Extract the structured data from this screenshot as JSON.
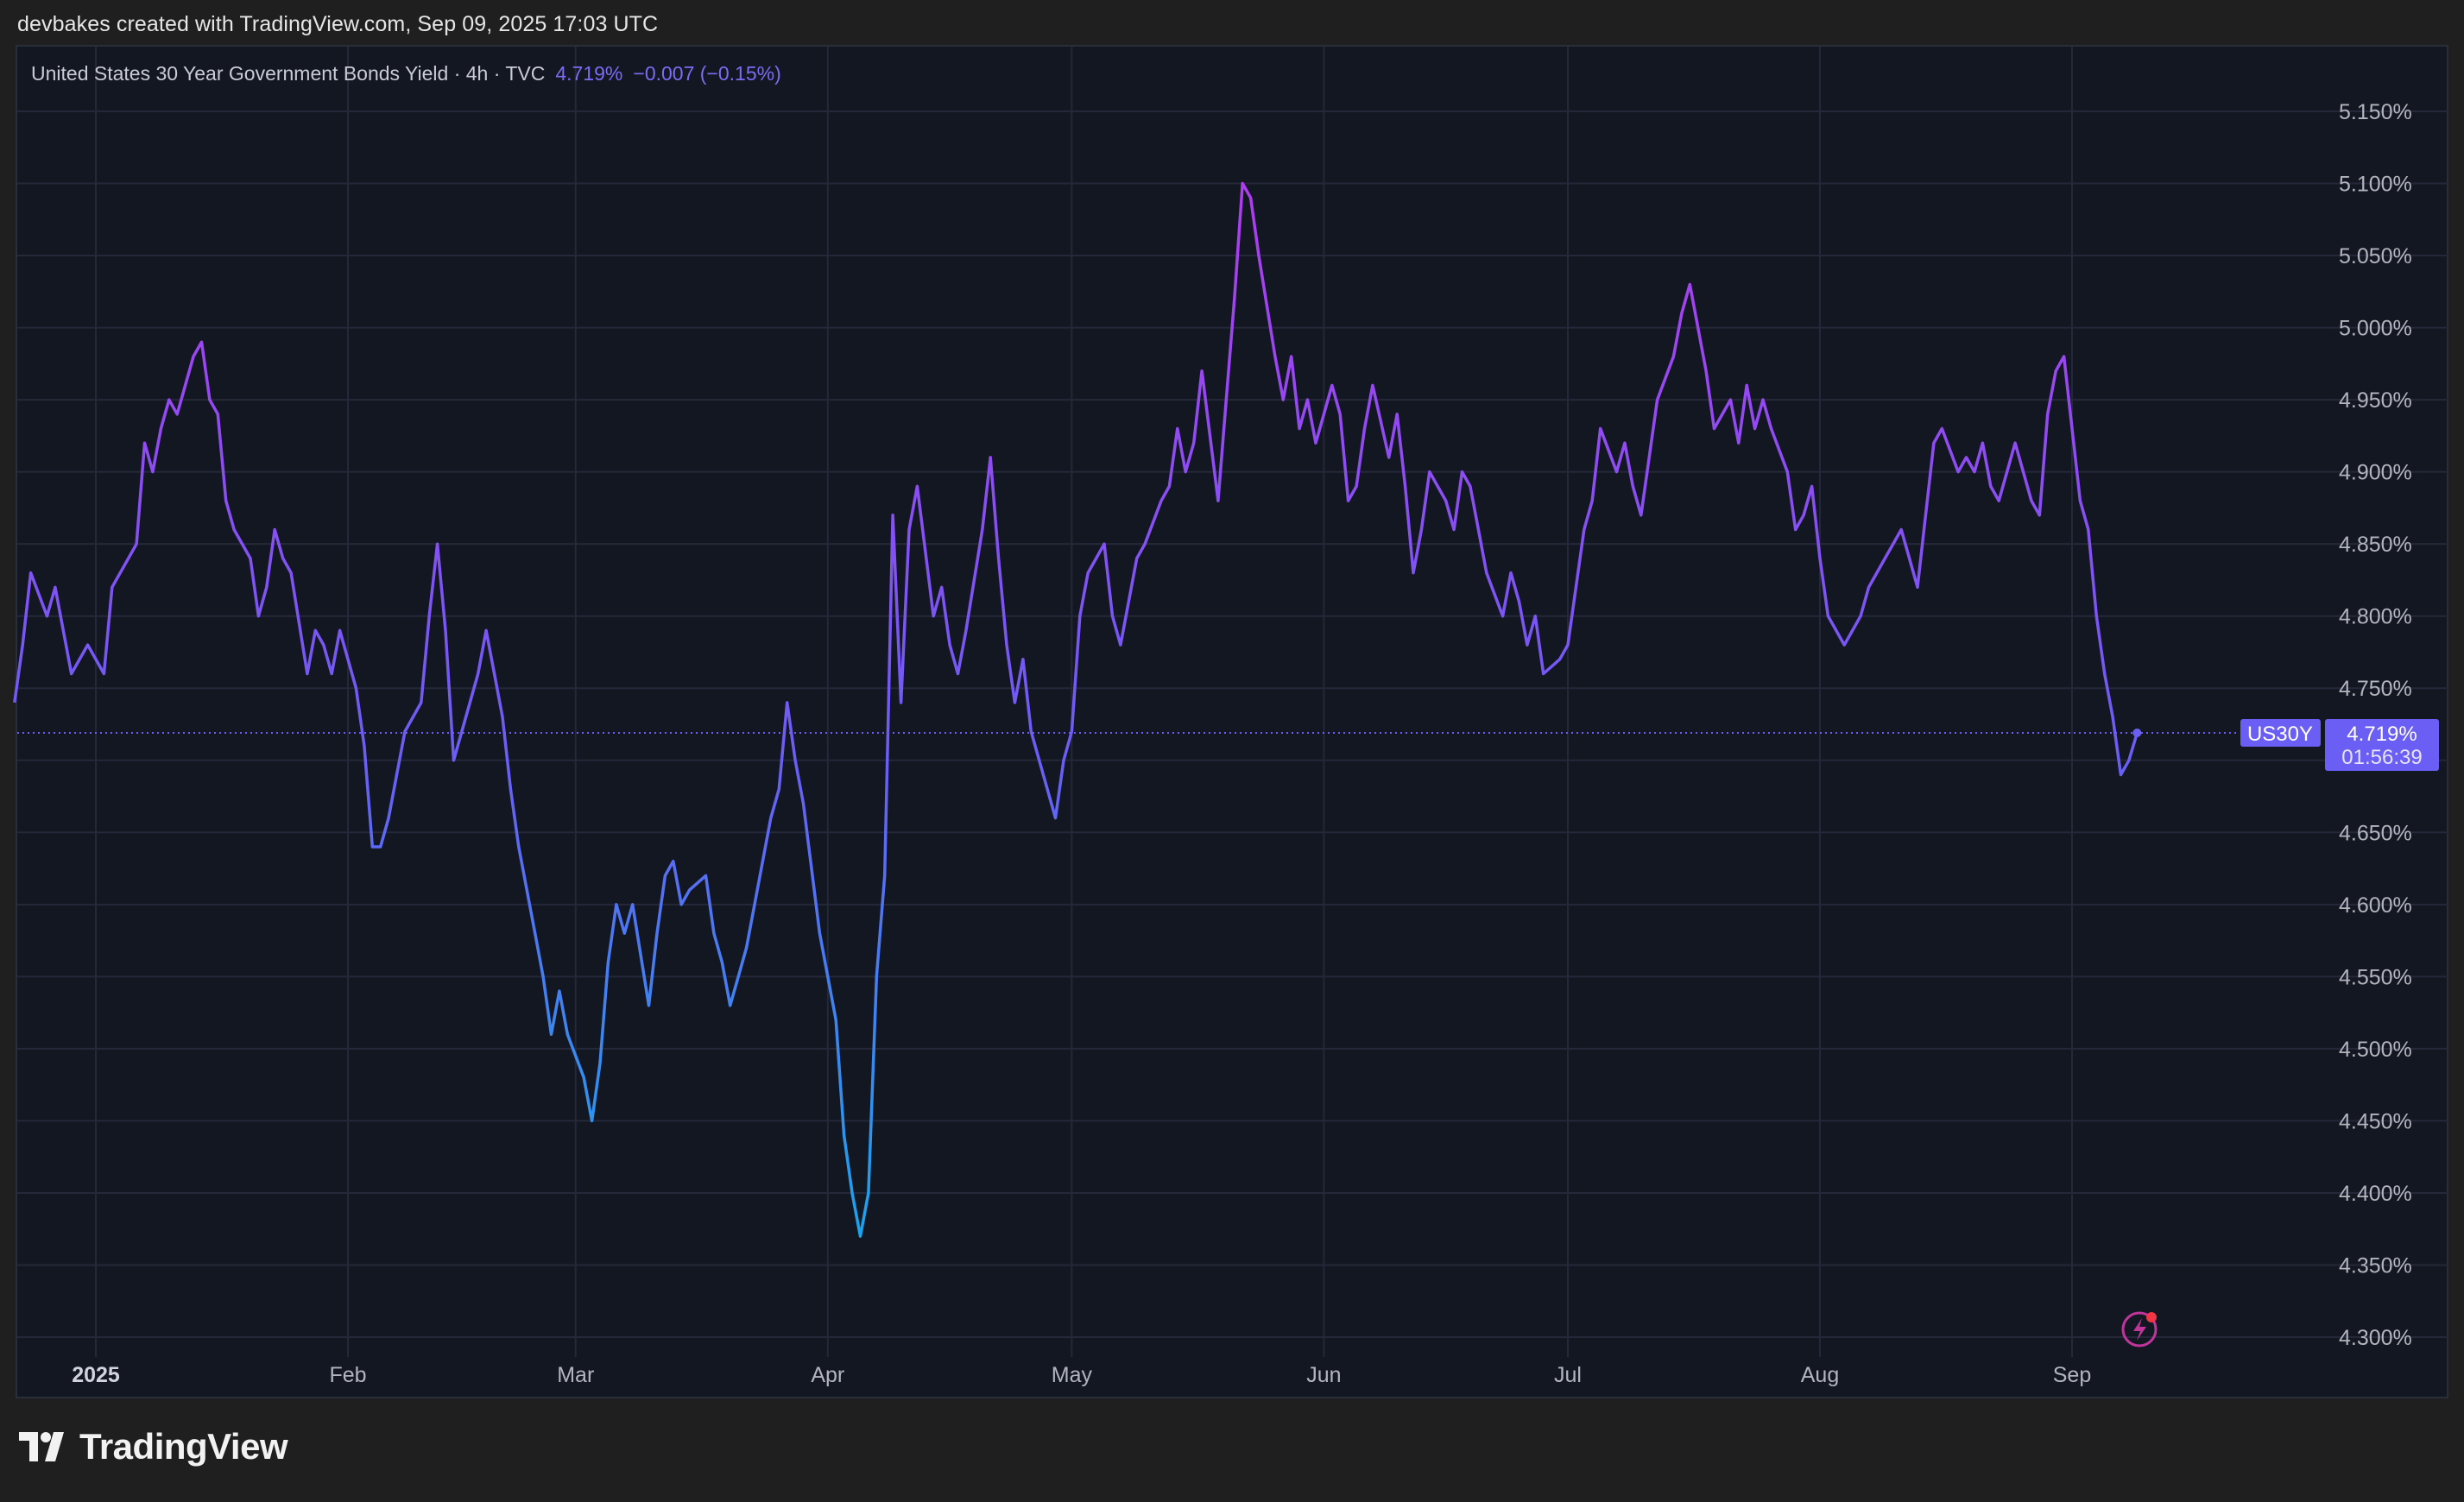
{
  "header": {
    "attribution": "devbakes created with TradingView.com, Sep 09, 2025 17:03 UTC"
  },
  "legend": {
    "title": "United States 30 Year Government Bonds Yield · 4h · TVC",
    "value": "4.719%",
    "change": "−0.007 (−0.15%)"
  },
  "footer": {
    "brand": "TradingView"
  },
  "price_tag": {
    "symbol": "US30Y",
    "price": "4.719%",
    "countdown": "01:56:39"
  },
  "colors": {
    "background": "#131722",
    "line_high": "#b03cf0",
    "line_mid": "#6a5ef5",
    "line_low": "#1aa4ee",
    "price_tag": "#6a5ef5"
  },
  "icons": [
    "tradingview-logo-icon",
    "lightning-alert-icon"
  ],
  "chart_data": {
    "type": "line",
    "ylim": [
      4.28,
      5.18
    ],
    "y_ticks": [
      4.3,
      4.35,
      4.4,
      4.45,
      4.5,
      4.55,
      4.6,
      4.65,
      4.7,
      4.75,
      4.8,
      4.85,
      4.9,
      4.95,
      5.0,
      5.05,
      5.1,
      5.15
    ],
    "y_tick_labels": [
      "4.300%",
      "4.350%",
      "4.400%",
      "4.450%",
      "4.500%",
      "4.550%",
      "4.600%",
      "4.650%",
      "4.700%",
      "4.750%",
      "4.800%",
      "4.850%",
      "4.900%",
      "4.950%",
      "5.000%",
      "5.050%",
      "5.100%",
      "5.150%"
    ],
    "x_tick_labels": [
      "2025",
      "Feb",
      "Mar",
      "Apr",
      "May",
      "Jun",
      "Jul",
      "Aug",
      "Sep"
    ],
    "x_tick_dates": [
      "2025-01-01",
      "2025-02-01",
      "2025-03-01",
      "2025-04-01",
      "2025-05-01",
      "2025-06-01",
      "2025-07-01",
      "2025-08-01",
      "2025-09-01"
    ],
    "xlim": [
      "2024-12-22",
      "2025-10-08"
    ],
    "current_value": 4.719,
    "grid": true,
    "series": [
      {
        "points": [
          [
            "2024-12-22",
            4.74
          ],
          [
            "2024-12-23",
            4.78
          ],
          [
            "2024-12-24",
            4.83
          ],
          [
            "2024-12-26",
            4.8
          ],
          [
            "2024-12-27",
            4.82
          ],
          [
            "2024-12-29",
            4.76
          ],
          [
            "2024-12-31",
            4.78
          ],
          [
            "2025-01-02",
            4.76
          ],
          [
            "2025-01-03",
            4.82
          ],
          [
            "2025-01-06",
            4.85
          ],
          [
            "2025-01-07",
            4.92
          ],
          [
            "2025-01-08",
            4.9
          ],
          [
            "2025-01-09",
            4.93
          ],
          [
            "2025-01-10",
            4.95
          ],
          [
            "2025-01-11",
            4.94
          ],
          [
            "2025-01-13",
            4.98
          ],
          [
            "2025-01-14",
            4.99
          ],
          [
            "2025-01-15",
            4.95
          ],
          [
            "2025-01-16",
            4.94
          ],
          [
            "2025-01-17",
            4.88
          ],
          [
            "2025-01-18",
            4.86
          ],
          [
            "2025-01-20",
            4.84
          ],
          [
            "2025-01-21",
            4.8
          ],
          [
            "2025-01-22",
            4.82
          ],
          [
            "2025-01-23",
            4.86
          ],
          [
            "2025-01-24",
            4.84
          ],
          [
            "2025-01-25",
            4.83
          ],
          [
            "2025-01-27",
            4.76
          ],
          [
            "2025-01-28",
            4.79
          ],
          [
            "2025-01-29",
            4.78
          ],
          [
            "2025-01-30",
            4.76
          ],
          [
            "2025-01-31",
            4.79
          ],
          [
            "2025-02-02",
            4.75
          ],
          [
            "2025-02-03",
            4.71
          ],
          [
            "2025-02-04",
            4.64
          ],
          [
            "2025-02-05",
            4.64
          ],
          [
            "2025-02-06",
            4.66
          ],
          [
            "2025-02-07",
            4.69
          ],
          [
            "2025-02-08",
            4.72
          ],
          [
            "2025-02-10",
            4.74
          ],
          [
            "2025-02-11",
            4.8
          ],
          [
            "2025-02-12",
            4.85
          ],
          [
            "2025-02-13",
            4.79
          ],
          [
            "2025-02-14",
            4.7
          ],
          [
            "2025-02-15",
            4.72
          ],
          [
            "2025-02-17",
            4.76
          ],
          [
            "2025-02-18",
            4.79
          ],
          [
            "2025-02-19",
            4.76
          ],
          [
            "2025-02-20",
            4.73
          ],
          [
            "2025-02-21",
            4.68
          ],
          [
            "2025-02-22",
            4.64
          ],
          [
            "2025-02-24",
            4.58
          ],
          [
            "2025-02-25",
            4.55
          ],
          [
            "2025-02-26",
            4.51
          ],
          [
            "2025-02-27",
            4.54
          ],
          [
            "2025-02-28",
            4.51
          ],
          [
            "2025-03-02",
            4.48
          ],
          [
            "2025-03-03",
            4.45
          ],
          [
            "2025-03-04",
            4.49
          ],
          [
            "2025-03-05",
            4.56
          ],
          [
            "2025-03-06",
            4.6
          ],
          [
            "2025-03-07",
            4.58
          ],
          [
            "2025-03-08",
            4.6
          ],
          [
            "2025-03-10",
            4.53
          ],
          [
            "2025-03-11",
            4.58
          ],
          [
            "2025-03-12",
            4.62
          ],
          [
            "2025-03-13",
            4.63
          ],
          [
            "2025-03-14",
            4.6
          ],
          [
            "2025-03-15",
            4.61
          ],
          [
            "2025-03-17",
            4.62
          ],
          [
            "2025-03-18",
            4.58
          ],
          [
            "2025-03-19",
            4.56
          ],
          [
            "2025-03-20",
            4.53
          ],
          [
            "2025-03-21",
            4.55
          ],
          [
            "2025-03-22",
            4.57
          ],
          [
            "2025-03-24",
            4.63
          ],
          [
            "2025-03-25",
            4.66
          ],
          [
            "2025-03-26",
            4.68
          ],
          [
            "2025-03-27",
            4.74
          ],
          [
            "2025-03-28",
            4.7
          ],
          [
            "2025-03-29",
            4.67
          ],
          [
            "2025-03-31",
            4.58
          ],
          [
            "2025-04-01",
            4.55
          ],
          [
            "2025-04-02",
            4.52
          ],
          [
            "2025-04-03",
            4.44
          ],
          [
            "2025-04-04",
            4.4
          ],
          [
            "2025-04-05",
            4.37
          ],
          [
            "2025-04-06",
            4.4
          ],
          [
            "2025-04-07",
            4.55
          ],
          [
            "2025-04-08",
            4.62
          ],
          [
            "2025-04-09",
            4.87
          ],
          [
            "2025-04-10",
            4.74
          ],
          [
            "2025-04-11",
            4.86
          ],
          [
            "2025-04-12",
            4.89
          ],
          [
            "2025-04-14",
            4.8
          ],
          [
            "2025-04-15",
            4.82
          ],
          [
            "2025-04-16",
            4.78
          ],
          [
            "2025-04-17",
            4.76
          ],
          [
            "2025-04-18",
            4.79
          ],
          [
            "2025-04-20",
            4.86
          ],
          [
            "2025-04-21",
            4.91
          ],
          [
            "2025-04-22",
            4.84
          ],
          [
            "2025-04-23",
            4.78
          ],
          [
            "2025-04-24",
            4.74
          ],
          [
            "2025-04-25",
            4.77
          ],
          [
            "2025-04-26",
            4.72
          ],
          [
            "2025-04-28",
            4.68
          ],
          [
            "2025-04-29",
            4.66
          ],
          [
            "2025-04-30",
            4.7
          ],
          [
            "2025-05-01",
            4.72
          ],
          [
            "2025-05-02",
            4.8
          ],
          [
            "2025-05-03",
            4.83
          ],
          [
            "2025-05-05",
            4.85
          ],
          [
            "2025-05-06",
            4.8
          ],
          [
            "2025-05-07",
            4.78
          ],
          [
            "2025-05-08",
            4.81
          ],
          [
            "2025-05-09",
            4.84
          ],
          [
            "2025-05-10",
            4.85
          ],
          [
            "2025-05-12",
            4.88
          ],
          [
            "2025-05-13",
            4.89
          ],
          [
            "2025-05-14",
            4.93
          ],
          [
            "2025-05-15",
            4.9
          ],
          [
            "2025-05-16",
            4.92
          ],
          [
            "2025-05-17",
            4.97
          ],
          [
            "2025-05-19",
            4.88
          ],
          [
            "2025-05-20",
            4.95
          ],
          [
            "2025-05-21",
            5.02
          ],
          [
            "2025-05-22",
            5.1
          ],
          [
            "2025-05-23",
            5.09
          ],
          [
            "2025-05-24",
            5.05
          ],
          [
            "2025-05-26",
            4.98
          ],
          [
            "2025-05-27",
            4.95
          ],
          [
            "2025-05-28",
            4.98
          ],
          [
            "2025-05-29",
            4.93
          ],
          [
            "2025-05-30",
            4.95
          ],
          [
            "2025-05-31",
            4.92
          ],
          [
            "2025-06-02",
            4.96
          ],
          [
            "2025-06-03",
            4.94
          ],
          [
            "2025-06-04",
            4.88
          ],
          [
            "2025-06-05",
            4.89
          ],
          [
            "2025-06-06",
            4.93
          ],
          [
            "2025-06-07",
            4.96
          ],
          [
            "2025-06-09",
            4.91
          ],
          [
            "2025-06-10",
            4.94
          ],
          [
            "2025-06-11",
            4.89
          ],
          [
            "2025-06-12",
            4.83
          ],
          [
            "2025-06-13",
            4.86
          ],
          [
            "2025-06-14",
            4.9
          ],
          [
            "2025-06-16",
            4.88
          ],
          [
            "2025-06-17",
            4.86
          ],
          [
            "2025-06-18",
            4.9
          ],
          [
            "2025-06-19",
            4.89
          ],
          [
            "2025-06-20",
            4.86
          ],
          [
            "2025-06-21",
            4.83
          ],
          [
            "2025-06-23",
            4.8
          ],
          [
            "2025-06-24",
            4.83
          ],
          [
            "2025-06-25",
            4.81
          ],
          [
            "2025-06-26",
            4.78
          ],
          [
            "2025-06-27",
            4.8
          ],
          [
            "2025-06-28",
            4.76
          ],
          [
            "2025-06-30",
            4.77
          ],
          [
            "2025-07-01",
            4.78
          ],
          [
            "2025-07-02",
            4.82
          ],
          [
            "2025-07-03",
            4.86
          ],
          [
            "2025-07-04",
            4.88
          ],
          [
            "2025-07-05",
            4.93
          ],
          [
            "2025-07-07",
            4.9
          ],
          [
            "2025-07-08",
            4.92
          ],
          [
            "2025-07-09",
            4.89
          ],
          [
            "2025-07-10",
            4.87
          ],
          [
            "2025-07-11",
            4.91
          ],
          [
            "2025-07-12",
            4.95
          ],
          [
            "2025-07-14",
            4.98
          ],
          [
            "2025-07-15",
            5.01
          ],
          [
            "2025-07-16",
            5.03
          ],
          [
            "2025-07-17",
            5.0
          ],
          [
            "2025-07-18",
            4.97
          ],
          [
            "2025-07-19",
            4.93
          ],
          [
            "2025-07-21",
            4.95
          ],
          [
            "2025-07-22",
            4.92
          ],
          [
            "2025-07-23",
            4.96
          ],
          [
            "2025-07-24",
            4.93
          ],
          [
            "2025-07-25",
            4.95
          ],
          [
            "2025-07-26",
            4.93
          ],
          [
            "2025-07-28",
            4.9
          ],
          [
            "2025-07-29",
            4.86
          ],
          [
            "2025-07-30",
            4.87
          ],
          [
            "2025-07-31",
            4.89
          ],
          [
            "2025-08-01",
            4.84
          ],
          [
            "2025-08-02",
            4.8
          ],
          [
            "2025-08-04",
            4.78
          ],
          [
            "2025-08-05",
            4.79
          ],
          [
            "2025-08-06",
            4.8
          ],
          [
            "2025-08-07",
            4.82
          ],
          [
            "2025-08-08",
            4.83
          ],
          [
            "2025-08-09",
            4.84
          ],
          [
            "2025-08-11",
            4.86
          ],
          [
            "2025-08-12",
            4.84
          ],
          [
            "2025-08-13",
            4.82
          ],
          [
            "2025-08-14",
            4.87
          ],
          [
            "2025-08-15",
            4.92
          ],
          [
            "2025-08-16",
            4.93
          ],
          [
            "2025-08-18",
            4.9
          ],
          [
            "2025-08-19",
            4.91
          ],
          [
            "2025-08-20",
            4.9
          ],
          [
            "2025-08-21",
            4.92
          ],
          [
            "2025-08-22",
            4.89
          ],
          [
            "2025-08-23",
            4.88
          ],
          [
            "2025-08-25",
            4.92
          ],
          [
            "2025-08-26",
            4.9
          ],
          [
            "2025-08-27",
            4.88
          ],
          [
            "2025-08-28",
            4.87
          ],
          [
            "2025-08-29",
            4.94
          ],
          [
            "2025-08-30",
            4.97
          ],
          [
            "2025-08-31",
            4.98
          ],
          [
            "2025-09-01",
            4.93
          ],
          [
            "2025-09-02",
            4.88
          ],
          [
            "2025-09-03",
            4.86
          ],
          [
            "2025-09-04",
            4.8
          ],
          [
            "2025-09-05",
            4.76
          ],
          [
            "2025-09-06",
            4.73
          ],
          [
            "2025-09-07",
            4.69
          ],
          [
            "2025-09-08",
            4.7
          ],
          [
            "2025-09-09",
            4.719
          ]
        ]
      }
    ]
  }
}
